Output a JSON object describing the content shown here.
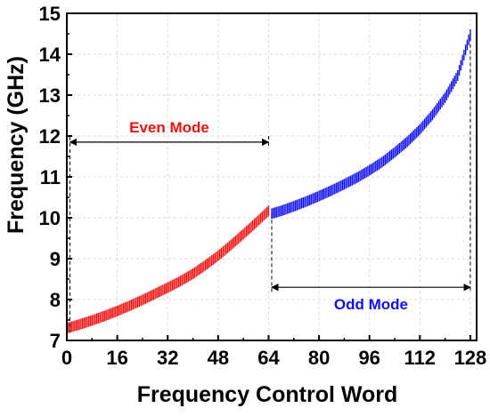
{
  "chart_data": {
    "type": "scatter",
    "title": "",
    "xlabel": "Frequency Control Word",
    "ylabel": "Frequency (GHz)",
    "xlim": [
      0,
      130
    ],
    "ylim": [
      7,
      15
    ],
    "xticks": [
      0,
      16,
      32,
      48,
      64,
      80,
      96,
      112,
      128
    ],
    "yticks": [
      7,
      8,
      9,
      10,
      11,
      12,
      13,
      14,
      15
    ],
    "grid": true,
    "series": [
      {
        "name": "Even Mode",
        "color": "#ee1111",
        "x": [
          0,
          4,
          8,
          12,
          16,
          20,
          24,
          28,
          32,
          36,
          40,
          44,
          48,
          52,
          56,
          60,
          64
        ],
        "y": [
          7.3,
          7.39,
          7.49,
          7.6,
          7.72,
          7.85,
          7.99,
          8.14,
          8.29,
          8.45,
          8.63,
          8.84,
          9.07,
          9.33,
          9.6,
          9.88,
          10.17
        ]
      },
      {
        "name": "Odd Mode",
        "color": "#1111ee",
        "x": [
          65,
          68,
          72,
          76,
          80,
          84,
          88,
          92,
          96,
          100,
          104,
          108,
          112,
          116,
          120,
          124,
          128
        ],
        "y": [
          10.1,
          10.17,
          10.28,
          10.4,
          10.53,
          10.67,
          10.82,
          10.98,
          11.16,
          11.36,
          11.6,
          11.86,
          12.16,
          12.52,
          12.94,
          13.48,
          14.48
        ]
      }
    ],
    "annotations": [
      {
        "text": "Even Mode",
        "color": "#ee1111",
        "x_start": 1,
        "x_end": 64,
        "y": 11.85
      },
      {
        "text": "Odd Mode",
        "color": "#1111ee",
        "x_start": 65,
        "x_end": 128,
        "y": 8.3
      }
    ]
  }
}
